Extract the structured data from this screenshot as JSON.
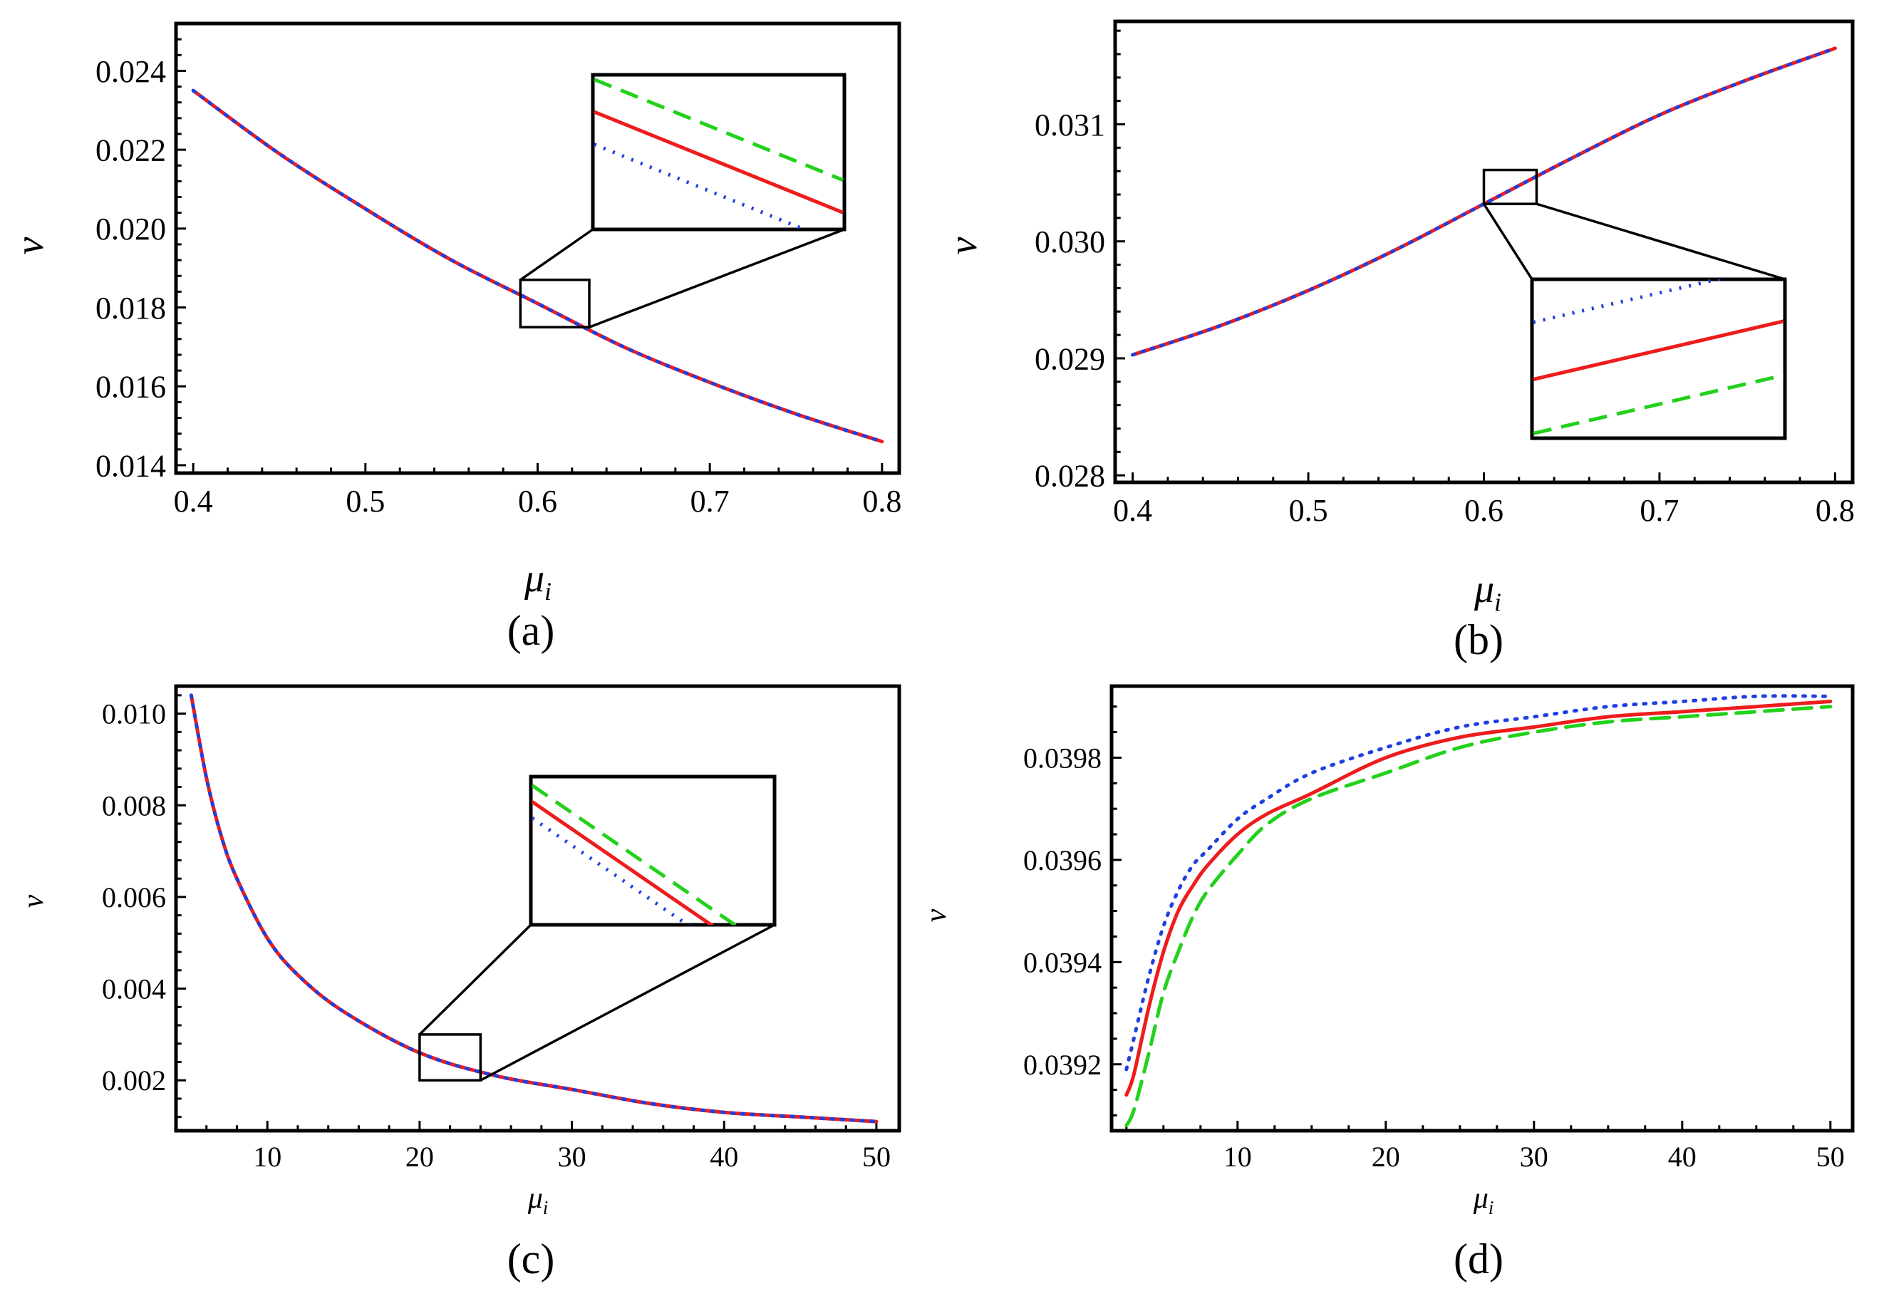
{
  "chart_data": [
    {
      "type": "line",
      "caption": "(a)",
      "xlabel": "μ",
      "xlabel_sub": "i",
      "ylabel": "ν",
      "xlim": [
        0.39,
        0.81
      ],
      "ylim": [
        0.0138,
        0.0252
      ],
      "xticks": [
        0.4,
        0.5,
        0.6,
        0.7,
        0.8
      ],
      "xtick_labels": [
        "0.4",
        "0.5",
        "0.6",
        "0.7",
        "0.8"
      ],
      "yticks": [
        0.014,
        0.016,
        0.018,
        0.02,
        0.022,
        0.024
      ],
      "ytick_labels": [
        "0.014",
        "0.016",
        "0.018",
        "0.020",
        "0.022",
        "0.024"
      ],
      "series": [
        {
          "name": "red-solid",
          "color": "#ee1c1c",
          "dash": "solid",
          "x": [
            0.4,
            0.45,
            0.5,
            0.55,
            0.6,
            0.65,
            0.7,
            0.75,
            0.8
          ],
          "y": [
            0.0235,
            0.0219,
            0.0205,
            0.0192,
            0.0181,
            0.017,
            0.0161,
            0.0153,
            0.0146
          ]
        },
        {
          "name": "blue-dotted",
          "color": "#1f3fe0",
          "dash": "dotted",
          "x": [
            0.4,
            0.45,
            0.5,
            0.55,
            0.6,
            0.65,
            0.7,
            0.75,
            0.8
          ],
          "y": [
            0.0235,
            0.0219,
            0.0205,
            0.0192,
            0.0181,
            0.017,
            0.0161,
            0.0153,
            0.0146
          ]
        }
      ],
      "zoom_box": {
        "x": [
          0.59,
          0.63
        ],
        "y": [
          0.0175,
          0.0187
        ]
      },
      "inset_order_top_to_bottom": [
        "green-dashed",
        "red-solid",
        "blue-dotted"
      ]
    },
    {
      "type": "line",
      "caption": "(b)",
      "xlabel": "μ",
      "xlabel_sub": "i",
      "ylabel": "ν",
      "xlim": [
        0.39,
        0.81
      ],
      "ylim": [
        0.02794,
        0.03188
      ],
      "xticks": [
        0.4,
        0.5,
        0.6,
        0.7,
        0.8
      ],
      "xtick_labels": [
        "0.4",
        "0.5",
        "0.6",
        "0.7",
        "0.8"
      ],
      "yticks": [
        0.028,
        0.029,
        0.03,
        0.031
      ],
      "ytick_labels": [
        "0.028",
        "0.029",
        "0.030",
        "0.031"
      ],
      "series": [
        {
          "name": "red-solid",
          "color": "#ee1c1c",
          "dash": "solid",
          "x": [
            0.4,
            0.45,
            0.5,
            0.55,
            0.6,
            0.65,
            0.7,
            0.75,
            0.8
          ],
          "y": [
            0.02903,
            0.02928,
            0.02958,
            0.02993,
            0.03032,
            0.03071,
            0.03108,
            0.03138,
            0.03165
          ]
        },
        {
          "name": "blue-dotted",
          "color": "#1f3fe0",
          "dash": "dotted",
          "x": [
            0.4,
            0.45,
            0.5,
            0.55,
            0.6,
            0.65,
            0.7,
            0.75,
            0.8
          ],
          "y": [
            0.02903,
            0.02928,
            0.02958,
            0.02993,
            0.03032,
            0.03071,
            0.03108,
            0.03138,
            0.03165
          ]
        }
      ],
      "zoom_box": {
        "x": [
          0.6,
          0.63
        ],
        "y": [
          0.03032,
          0.03061
        ]
      },
      "inset_order_top_to_bottom": [
        "blue-dotted",
        "red-solid",
        "green-dashed"
      ]
    },
    {
      "type": "line",
      "caption": "(c)",
      "xlabel": "μ",
      "xlabel_sub": "i",
      "ylabel": "ν",
      "xlim": [
        4,
        51.5
      ],
      "ylim": [
        0.0009,
        0.0106
      ],
      "xticks": [
        10,
        20,
        30,
        40,
        50
      ],
      "xtick_labels": [
        "10",
        "20",
        "30",
        "40",
        "50"
      ],
      "yticks": [
        0.002,
        0.004,
        0.006,
        0.008,
        0.01
      ],
      "ytick_labels": [
        "0.002",
        "0.004",
        "0.006",
        "0.008",
        "0.010"
      ],
      "series": [
        {
          "name": "red-solid",
          "color": "#ee1c1c",
          "dash": "solid",
          "x": [
            5,
            6,
            7,
            8,
            10,
            12,
            15,
            20,
            25,
            30,
            35,
            40,
            45,
            50
          ],
          "y": [
            0.0104,
            0.0086,
            0.0073,
            0.0064,
            0.0051,
            0.0043,
            0.0035,
            0.0026,
            0.0021,
            0.0018,
            0.0015,
            0.0013,
            0.0012,
            0.0011
          ]
        },
        {
          "name": "blue-dotted",
          "color": "#1f3fe0",
          "dash": "dotted",
          "x": [
            5,
            6,
            7,
            8,
            10,
            12,
            15,
            20,
            25,
            30,
            35,
            40,
            45,
            50
          ],
          "y": [
            0.0104,
            0.0086,
            0.0073,
            0.0064,
            0.0051,
            0.0043,
            0.0035,
            0.0026,
            0.0021,
            0.0018,
            0.0015,
            0.0013,
            0.0012,
            0.0011
          ]
        }
      ],
      "zoom_box": {
        "x": [
          20,
          24
        ],
        "y": [
          0.002,
          0.003
        ]
      },
      "inset_order_top_to_bottom": [
        "green-dashed",
        "red-solid",
        "blue-dotted"
      ]
    },
    {
      "type": "line",
      "caption": "(d)",
      "xlabel": "μ",
      "xlabel_sub": "i",
      "ylabel": "ν",
      "xlim": [
        1.5,
        51.5
      ],
      "ylim": [
        0.03907,
        0.03994
      ],
      "xticks": [
        10,
        20,
        30,
        40,
        50
      ],
      "xtick_labels": [
        "10",
        "20",
        "30",
        "40",
        "50"
      ],
      "yticks": [
        0.0392,
        0.0394,
        0.0396,
        0.0398
      ],
      "ytick_labels": [
        "0.0392",
        "0.0394",
        "0.0396",
        "0.0398"
      ],
      "series": [
        {
          "name": "red-solid",
          "color": "#ee1c1c",
          "dash": "solid",
          "x": [
            2.5,
            3,
            4,
            5,
            6,
            7,
            8,
            10,
            12,
            15,
            20,
            25,
            30,
            35,
            40,
            45,
            50
          ],
          "y": [
            0.03914,
            0.03918,
            0.03931,
            0.03942,
            0.0395,
            0.03955,
            0.03959,
            0.03965,
            0.03969,
            0.03973,
            0.0398,
            0.03984,
            0.03986,
            0.03988,
            0.03989,
            0.0399,
            0.03991
          ]
        },
        {
          "name": "blue-dotted",
          "color": "#1f3fe0",
          "dash": "dotted",
          "x": [
            2.5,
            3,
            4,
            5,
            6,
            7,
            8,
            10,
            12,
            15,
            20,
            25,
            30,
            35,
            40,
            45,
            50
          ],
          "y": [
            0.03919,
            0.03925,
            0.03937,
            0.03947,
            0.03954,
            0.03959,
            0.03962,
            0.03968,
            0.03972,
            0.03977,
            0.03982,
            0.03986,
            0.03988,
            0.0399,
            0.03991,
            0.03992,
            0.03992
          ]
        },
        {
          "name": "green-dashed",
          "color": "#22d11a",
          "dash": "dashed",
          "x": [
            2.5,
            3,
            4,
            5,
            6,
            7,
            8,
            10,
            12,
            15,
            20,
            25,
            30,
            35,
            40,
            45,
            50
          ],
          "y": [
            0.03908,
            0.03911,
            0.03922,
            0.03934,
            0.03942,
            0.03949,
            0.03954,
            0.03961,
            0.03967,
            0.03972,
            0.03977,
            0.03982,
            0.03985,
            0.03987,
            0.03988,
            0.03989,
            0.0399
          ]
        }
      ]
    }
  ],
  "colors": {
    "red": "#ee1c1c",
    "blue": "#1f3fe0",
    "green": "#22d11a",
    "axis": "#000000"
  }
}
